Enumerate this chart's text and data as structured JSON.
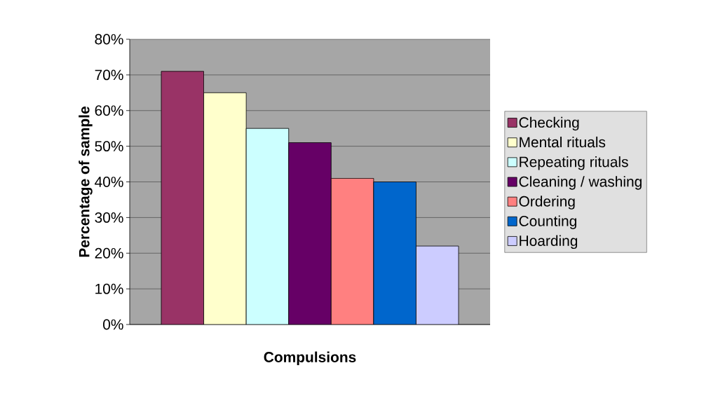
{
  "chart_data": {
    "type": "bar",
    "xlabel": "Compulsions",
    "ylabel": "Percentage of sample",
    "categories": [
      null
    ],
    "series": [
      {
        "name": "Checking",
        "color": "#993366",
        "values": [
          71
        ]
      },
      {
        "name": "Mental rituals",
        "color": "#ffffcc",
        "values": [
          65
        ]
      },
      {
        "name": "Repeating rituals",
        "color": "#ccffff",
        "values": [
          55
        ]
      },
      {
        "name": "Cleaning / washing",
        "color": "#660066",
        "values": [
          51
        ]
      },
      {
        "name": "Ordering",
        "color": "#ff8080",
        "values": [
          41
        ]
      },
      {
        "name": "Counting",
        "color": "#0066cc",
        "values": [
          40
        ]
      },
      {
        "name": "Hoarding",
        "color": "#ccccff",
        "values": [
          22
        ]
      }
    ],
    "ylim": [
      0,
      80
    ],
    "yticks": [
      {
        "value": 0,
        "label": "0%"
      },
      {
        "value": 10,
        "label": "10%"
      },
      {
        "value": 20,
        "label": "20%"
      },
      {
        "value": 30,
        "label": "30%"
      },
      {
        "value": 40,
        "label": "40%"
      },
      {
        "value": 50,
        "label": "50%"
      },
      {
        "value": 60,
        "label": "60%"
      },
      {
        "value": 70,
        "label": "70%"
      },
      {
        "value": 80,
        "label": "80%"
      }
    ],
    "grid": "y",
    "legend": "right",
    "tick_labels": "y"
  }
}
